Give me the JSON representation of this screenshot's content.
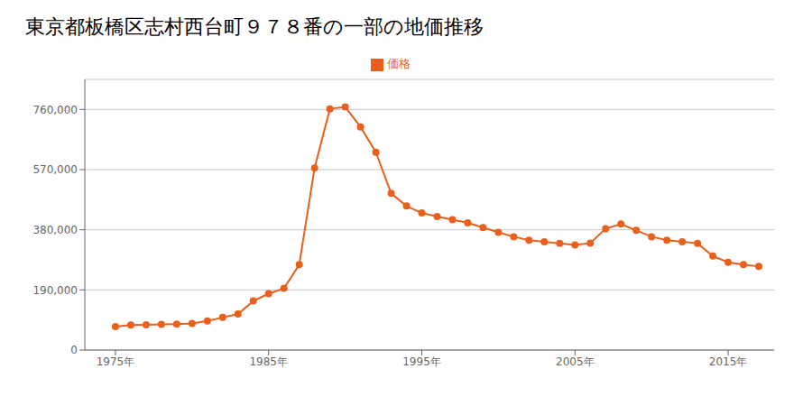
{
  "chart_data": {
    "type": "line",
    "title": "東京都板橋区志村西台町９７８番の一部の地価推移",
    "x": [
      1975,
      1976,
      1977,
      1978,
      1979,
      1980,
      1981,
      1982,
      1983,
      1984,
      1985,
      1986,
      1987,
      1988,
      1989,
      1990,
      1991,
      1992,
      1993,
      1994,
      1995,
      1996,
      1997,
      1998,
      1999,
      2000,
      2001,
      2002,
      2003,
      2004,
      2005,
      2006,
      2007,
      2008,
      2009,
      2010,
      2011,
      2012,
      2013,
      2014,
      2015,
      2016,
      2017
    ],
    "series": [
      {
        "name": "価格",
        "color": "#e8601c",
        "marker": "circle",
        "values": [
          74000,
          79000,
          80000,
          81000,
          82000,
          84000,
          92000,
          103000,
          114000,
          155000,
          178000,
          195000,
          270000,
          575000,
          762000,
          768000,
          705000,
          625000,
          495000,
          455000,
          433000,
          422000,
          412000,
          402000,
          387000,
          372000,
          358000,
          347000,
          342000,
          337000,
          332000,
          338000,
          383000,
          398000,
          378000,
          358000,
          347000,
          342000,
          337000,
          297000,
          277000,
          270000,
          264000
        ]
      }
    ],
    "xlim": [
      1973,
      2018
    ],
    "xticks": [
      {
        "value": 1975,
        "label": "1975年"
      },
      {
        "value": 1985,
        "label": "1985年"
      },
      {
        "value": 1995,
        "label": "1995年"
      },
      {
        "value": 2005,
        "label": "2005年"
      },
      {
        "value": 2015,
        "label": "2015年"
      }
    ],
    "ylim": [
      0,
      855000
    ],
    "yticks": [
      0,
      {
        "value": 190000,
        "label": "190,000"
      },
      {
        "value": 380000,
        "label": "380,000"
      },
      {
        "value": 570000,
        "label": "570,000"
      },
      {
        "value": 760000,
        "label": "760,000"
      }
    ],
    "grid": "y",
    "legend": "top"
  }
}
